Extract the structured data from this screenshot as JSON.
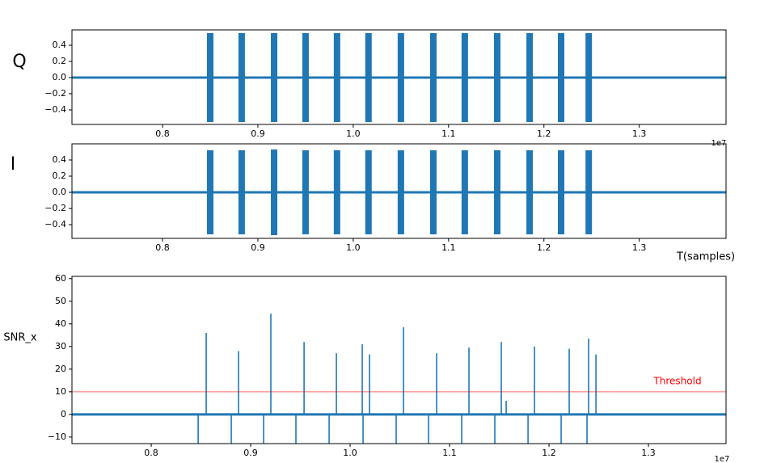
{
  "chart_data": [
    {
      "type": "envelope",
      "ylabel": "Q",
      "color": "#1f77b4",
      "x": [
        8500000,
        8830000,
        9170000,
        9500000,
        9830000,
        10160000,
        10500000,
        10840000,
        11170000,
        11510000,
        11850000,
        12180000,
        12470000
      ],
      "values": [
        0.55,
        0.55,
        0.55,
        0.55,
        0.55,
        0.55,
        0.55,
        0.55,
        0.55,
        0.55,
        0.55,
        0.55,
        0.55
      ],
      "xlim": [
        7050000,
        13910000
      ],
      "ylim": [
        -0.58,
        0.59
      ],
      "xticks": [
        {
          "value": 8000000,
          "label": "0.8"
        },
        {
          "value": 9000000,
          "label": "0.9"
        },
        {
          "value": 10000000,
          "label": "1.0"
        },
        {
          "value": 11000000,
          "label": "1.1"
        },
        {
          "value": 12000000,
          "label": "1.2"
        },
        {
          "value": 13000000,
          "label": "1.3"
        }
      ],
      "yticks": [
        {
          "value": -0.4,
          "label": "−0.4"
        },
        {
          "value": -0.2,
          "label": "−0.2"
        },
        {
          "value": 0,
          "label": "0.0"
        },
        0.2,
        0.4
      ],
      "offset_text": "1e7"
    },
    {
      "type": "envelope",
      "ylabel": "I",
      "xlabel": "T(samples)",
      "color": "#1f77b4",
      "x": [
        8500000,
        8830000,
        9170000,
        9500000,
        9830000,
        10160000,
        10500000,
        10840000,
        11170000,
        11510000,
        11850000,
        12180000,
        12470000
      ],
      "values": [
        0.52,
        0.52,
        0.53,
        0.52,
        0.52,
        0.52,
        0.52,
        0.52,
        0.52,
        0.52,
        0.52,
        0.52,
        0.52
      ],
      "xlim": [
        7050000,
        13910000
      ],
      "ylim": [
        -0.57,
        0.6
      ],
      "xticks": [
        {
          "value": 8000000,
          "label": "0.8"
        },
        {
          "value": 9000000,
          "label": "0.9"
        },
        {
          "value": 10000000,
          "label": "1.0"
        },
        {
          "value": 11000000,
          "label": "1.1"
        },
        {
          "value": 12000000,
          "label": "1.2"
        },
        {
          "value": 13000000,
          "label": "1.3"
        }
      ],
      "yticks": [
        {
          "value": -0.4,
          "label": "−0.4"
        },
        {
          "value": -0.2,
          "label": "−0.2"
        },
        {
          "value": 0,
          "label": "0.0"
        },
        0.2,
        0.4
      ]
    },
    {
      "type": "spike",
      "ylabel": "SNR_x",
      "color": "#1f77b4",
      "x": [
        8472000,
        8553000,
        8805000,
        8878000,
        9130000,
        9203000,
        9455000,
        9537000,
        9789000,
        9862000,
        10122000,
        10130000,
        10195000,
        10463000,
        10537000,
        10789000,
        10870000,
        11122000,
        11195000,
        11455000,
        11520000,
        11569000,
        11789000,
        11854000,
        12122000,
        12203000,
        12382000,
        12398000,
        12472000
      ],
      "values": [
        -13,
        36,
        -13,
        28,
        -13,
        44.5,
        -13,
        32,
        -13,
        27,
        31,
        -13,
        26.5,
        -13,
        38.5,
        -13,
        27,
        -13,
        29.5,
        -13,
        32,
        6,
        -13,
        30,
        -13,
        29,
        -13,
        33.5,
        26.5
      ],
      "xlim": [
        7203000,
        13780000
      ],
      "ylim": [
        -12.9,
        61
      ],
      "xticks": [
        {
          "value": 8000000,
          "label": "0.8"
        },
        {
          "value": 9000000,
          "label": "0.9"
        },
        {
          "value": 10000000,
          "label": "1.0"
        },
        {
          "value": 11000000,
          "label": "1.1"
        },
        {
          "value": 12000000,
          "label": "1.2"
        },
        {
          "value": 13000000,
          "label": "1.3"
        }
      ],
      "yticks": [
        {
          "value": -10,
          "label": "−10"
        },
        0,
        10,
        20,
        30,
        40,
        50,
        60
      ],
      "threshold": {
        "value": 10,
        "label": "Threshold",
        "color": "#ff0000"
      },
      "offset_text": "1e7"
    }
  ]
}
